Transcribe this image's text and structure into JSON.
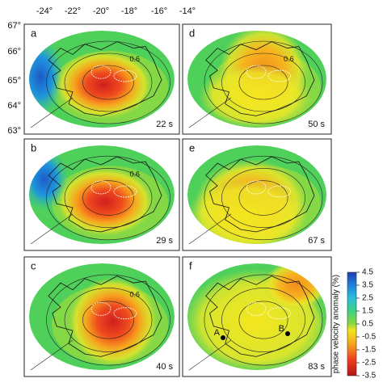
{
  "axes": {
    "longitudes": [
      "-24°",
      "-22°",
      "-20°",
      "-18°",
      "-16°",
      "-14°"
    ],
    "latitudes": [
      "67°",
      "66°",
      "65°",
      "64°",
      "63°"
    ]
  },
  "panels": [
    {
      "letter": "a",
      "period": "22 s",
      "contour_label": "0.6"
    },
    {
      "letter": "b",
      "period": "29 s",
      "contour_label": "0.6"
    },
    {
      "letter": "c",
      "period": "40 s",
      "contour_label": "0.6"
    },
    {
      "letter": "d",
      "period": "50 s",
      "contour_label": "0.6"
    },
    {
      "letter": "e",
      "period": "67 s"
    },
    {
      "letter": "f",
      "period": "83 s",
      "points": [
        "A",
        "B"
      ]
    }
  ],
  "colorbar": {
    "label": "phase velocity anomaly (%)",
    "range": [
      -3.5,
      4.5
    ],
    "ticks": [
      4.5,
      3.5,
      2.5,
      1.5,
      0.5,
      -0.5,
      -1.5,
      -2.5,
      -3.5
    ]
  }
}
